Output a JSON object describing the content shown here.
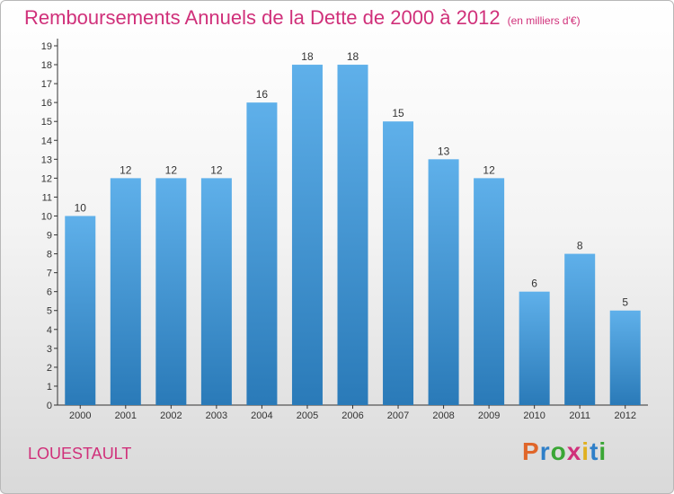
{
  "title": "Remboursements Annuels de la Dette de 2000 à 2012",
  "subtitle": "(en milliers d'€)",
  "commune": "LOUESTAULT",
  "brand": {
    "letters": [
      "P",
      "r",
      "o",
      "x",
      "i",
      "t",
      "i"
    ],
    "colors": [
      "#e0662a",
      "#2f7fc8",
      "#3aa635",
      "#d0307a",
      "#e0b020",
      "#2f7fc8",
      "#3aa635"
    ]
  },
  "colors": {
    "title": "#d0307a",
    "bar_light": "#5fb0ea",
    "bar_dark": "#2a7ab8",
    "axis": "#333333"
  },
  "chart_data": {
    "type": "bar",
    "categories": [
      "2000",
      "2001",
      "2002",
      "2003",
      "2004",
      "2005",
      "2006",
      "2007",
      "2008",
      "2009",
      "2010",
      "2011",
      "2012"
    ],
    "values": [
      10,
      12,
      12,
      12,
      16,
      18,
      18,
      15,
      13,
      12,
      6,
      8,
      5
    ],
    "ylim": [
      0,
      19
    ],
    "yticks": [
      0,
      1,
      2,
      3,
      4,
      5,
      6,
      7,
      8,
      9,
      10,
      11,
      12,
      13,
      14,
      15,
      16,
      17,
      18,
      19
    ],
    "grid": false,
    "data_labels": true
  }
}
